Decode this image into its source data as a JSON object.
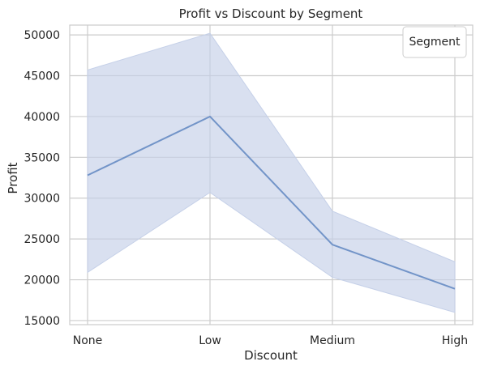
{
  "chart_data": {
    "type": "line",
    "title": "Profit vs Discount by Segment",
    "xlabel": "Discount",
    "ylabel": "Profit",
    "categories": [
      "None",
      "Low",
      "Medium",
      "High"
    ],
    "ylim": [
      14500,
      51200
    ],
    "yticks": [
      15000,
      20000,
      25000,
      30000,
      35000,
      40000,
      45000,
      50000
    ],
    "grid": true,
    "legend": {
      "title": "Segment",
      "placement": "top-right"
    },
    "series": [
      {
        "values": [
          32800,
          40000,
          24300,
          18900
        ],
        "ci_lower": [
          20900,
          30700,
          20300,
          16000
        ],
        "ci_upper": [
          45700,
          50200,
          28400,
          22200
        ],
        "color": "#7294c8",
        "band_color": "#c5d0e8"
      }
    ]
  }
}
